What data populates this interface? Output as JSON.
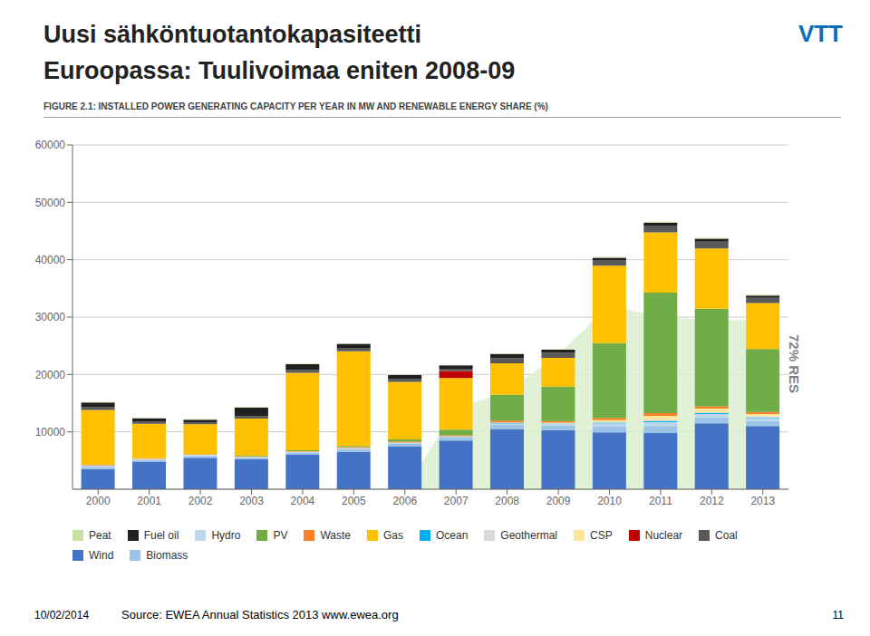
{
  "chart_data": {
    "type": "bar",
    "stacked": true,
    "title": "Uusi sähköntuotantokapasiteetti\nEuroopassa: Tuulivoimaa eniten 2008-09",
    "subtitle": "FIGURE 2.1: INSTALLED POWER GENERATING CAPACITY PER YEAR IN MW AND RENEWABLE ENERGY SHARE (%)",
    "annotations": [
      "72% RES",
      "VTT",
      "10/02/2014",
      "Source: EWEA  Annual Statistics 2013 www.ewea.org",
      "11"
    ],
    "categories": [
      2000,
      2001,
      2002,
      2003,
      2004,
      2005,
      2006,
      2007,
      2008,
      2009,
      2010,
      2011,
      2012,
      2013
    ],
    "series": [
      {
        "name": "Wind",
        "color": "#4472C4",
        "values": [
          3500,
          4800,
          5500,
          5200,
          6000,
          6500,
          7500,
          8500,
          10500,
          10300,
          9900,
          9800,
          11500,
          11000
        ]
      },
      {
        "name": "Biomass",
        "color": "#9DC3E6",
        "values": [
          400,
          300,
          300,
          300,
          400,
          500,
          400,
          500,
          700,
          800,
          1000,
          1200,
          1000,
          900
        ]
      },
      {
        "name": "Hydro",
        "color": "#BDD7EE",
        "values": [
          200,
          150,
          150,
          100,
          100,
          150,
          200,
          200,
          300,
          300,
          600,
          700,
          600,
          500
        ]
      },
      {
        "name": "Ocean",
        "color": "#00B0F0",
        "values": [
          0,
          0,
          0,
          0,
          0,
          0,
          0,
          0,
          50,
          50,
          100,
          200,
          150,
          100
        ]
      },
      {
        "name": "Geothermal",
        "color": "#D9D9D9",
        "values": [
          50,
          50,
          50,
          50,
          50,
          50,
          50,
          50,
          100,
          100,
          150,
          200,
          200,
          200
        ]
      },
      {
        "name": "CSP",
        "color": "#FFE699",
        "values": [
          0,
          0,
          0,
          0,
          0,
          0,
          0,
          0,
          0,
          50,
          300,
          700,
          600,
          400
        ]
      },
      {
        "name": "Waste",
        "color": "#FF7F27",
        "values": [
          100,
          80,
          80,
          80,
          80,
          150,
          150,
          150,
          300,
          300,
          400,
          450,
          400,
          350
        ]
      },
      {
        "name": "PV",
        "color": "#70AD47",
        "values": [
          50,
          30,
          50,
          100,
          150,
          200,
          400,
          1000,
          4500,
          6000,
          13000,
          21000,
          17000,
          11000
        ]
      },
      {
        "name": "Gas",
        "color": "#FFC000",
        "values": [
          9500,
          6000,
          5200,
          6500,
          13500,
          16500,
          10000,
          9000,
          5500,
          5000,
          13500,
          10500,
          10500,
          8000
        ]
      },
      {
        "name": "Nuclear",
        "color": "#C00000",
        "values": [
          0,
          0,
          0,
          0,
          0,
          0,
          0,
          1200,
          0,
          0,
          0,
          0,
          0,
          0
        ]
      },
      {
        "name": "Coal",
        "color": "#595959",
        "values": [
          500,
          350,
          300,
          400,
          500,
          600,
          500,
          400,
          900,
          900,
          1000,
          1200,
          1200,
          900
        ]
      },
      {
        "name": "Fuel oil",
        "color": "#202020",
        "values": [
          800,
          600,
          500,
          1500,
          1000,
          700,
          700,
          600,
          700,
          500,
          400,
          500,
          500,
          400
        ]
      },
      {
        "name": "Peat",
        "color": "#C9E0A5",
        "values": [
          100,
          80,
          80,
          80,
          80,
          80,
          80,
          80,
          80,
          80,
          150,
          150,
          150,
          150
        ]
      }
    ],
    "area": {
      "color": "#d8edcc",
      "values": [
        null,
        null,
        null,
        null,
        null,
        null,
        0,
        14000,
        17000,
        23500,
        32000,
        30000,
        29500,
        29500
      ]
    },
    "legend_entries": [
      "Peat",
      "Fuel oil",
      "Hydro",
      "PV",
      "Waste",
      "Gas",
      "Ocean",
      "Geothermal",
      "CSP",
      "Nuclear",
      "Coal",
      "Wind",
      "Biomass"
    ],
    "legend": "bottom",
    "ylim": [
      0,
      60000
    ],
    "yticks": [
      10000,
      20000,
      30000,
      40000,
      50000,
      60000
    ],
    "grid": true
  }
}
